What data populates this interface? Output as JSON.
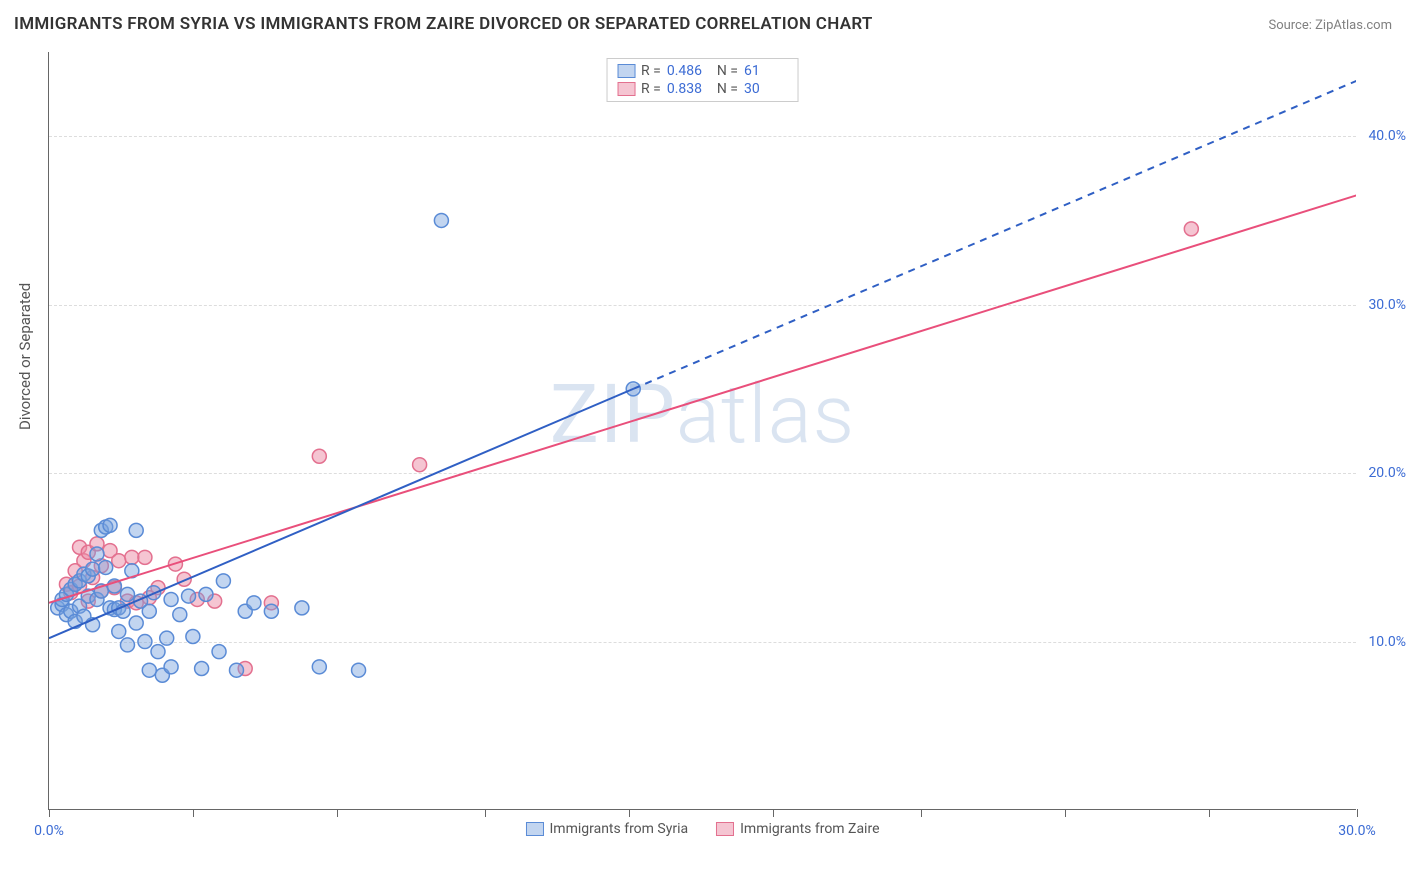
{
  "title": "IMMIGRANTS FROM SYRIA VS IMMIGRANTS FROM ZAIRE DIVORCED OR SEPARATED CORRELATION CHART",
  "source": "Source: ZipAtlas.com",
  "watermark": "ZIPatlas",
  "chart": {
    "type": "scatter",
    "xlabel": "",
    "ylabel": "Divorced or Separated",
    "xlim": [
      0,
      30
    ],
    "ylim": [
      0,
      45
    ],
    "xticks": [
      0,
      3.3,
      6.6,
      10,
      13.3,
      16.6,
      20,
      23.3,
      26.6,
      30
    ],
    "xtick_labels": {
      "0": "0.0%",
      "30": "30.0%"
    },
    "yticks": [
      10,
      20,
      30,
      40
    ],
    "ytick_labels": {
      "10": "10.0%",
      "20": "20.0%",
      "30": "30.0%",
      "40": "40.0%"
    },
    "background_color": "#ffffff",
    "grid_color": "#dddddd",
    "axis_color": "#666666",
    "tick_label_color": "#3b6bd4",
    "axis_label_color": "#555555",
    "axis_label_fontsize": 15,
    "tick_fontsize": 14,
    "marker_radius": 7,
    "marker_stroke_width": 1.5,
    "line_width": 2,
    "series": [
      {
        "name": "Immigrants from Syria",
        "fill": "rgba(120,162,222,0.45)",
        "stroke": "#5a8bd6",
        "line_color": "#2f5fc4",
        "R": "0.486",
        "N": "61",
        "trend": {
          "x1": 0,
          "y1": 10.2,
          "x2": 13.4,
          "y2": 25.0,
          "dash_x2": 30,
          "dash_y2": 43.3
        },
        "points": [
          [
            0.2,
            12.0
          ],
          [
            0.3,
            12.2
          ],
          [
            0.3,
            12.5
          ],
          [
            0.4,
            11.6
          ],
          [
            0.4,
            12.8
          ],
          [
            0.5,
            13.1
          ],
          [
            0.5,
            11.8
          ],
          [
            0.6,
            13.4
          ],
          [
            0.6,
            11.2
          ],
          [
            0.7,
            12.1
          ],
          [
            0.7,
            13.6
          ],
          [
            0.8,
            14.0
          ],
          [
            0.8,
            11.5
          ],
          [
            0.9,
            12.7
          ],
          [
            0.9,
            13.9
          ],
          [
            1.0,
            11.0
          ],
          [
            1.0,
            14.3
          ],
          [
            1.1,
            15.2
          ],
          [
            1.1,
            12.5
          ],
          [
            1.2,
            16.6
          ],
          [
            1.2,
            13.0
          ],
          [
            1.3,
            16.8
          ],
          [
            1.3,
            14.4
          ],
          [
            1.4,
            12.0
          ],
          [
            1.4,
            16.9
          ],
          [
            1.5,
            11.9
          ],
          [
            1.5,
            13.3
          ],
          [
            1.6,
            10.6
          ],
          [
            1.6,
            12.0
          ],
          [
            1.7,
            11.8
          ],
          [
            1.8,
            12.8
          ],
          [
            1.8,
            9.8
          ],
          [
            1.9,
            14.2
          ],
          [
            2.0,
            16.6
          ],
          [
            2.0,
            11.1
          ],
          [
            2.1,
            12.4
          ],
          [
            2.2,
            10.0
          ],
          [
            2.3,
            8.3
          ],
          [
            2.3,
            11.8
          ],
          [
            2.4,
            12.9
          ],
          [
            2.5,
            9.4
          ],
          [
            2.6,
            8.0
          ],
          [
            2.7,
            10.2
          ],
          [
            2.8,
            8.5
          ],
          [
            2.8,
            12.5
          ],
          [
            3.0,
            11.6
          ],
          [
            3.2,
            12.7
          ],
          [
            3.3,
            10.3
          ],
          [
            3.5,
            8.4
          ],
          [
            3.6,
            12.8
          ],
          [
            3.9,
            9.4
          ],
          [
            4.0,
            13.6
          ],
          [
            4.3,
            8.3
          ],
          [
            4.5,
            11.8
          ],
          [
            4.7,
            12.3
          ],
          [
            5.1,
            11.8
          ],
          [
            5.8,
            12.0
          ],
          [
            6.2,
            8.5
          ],
          [
            7.1,
            8.3
          ],
          [
            9.0,
            35.0
          ],
          [
            13.4,
            25.0
          ]
        ]
      },
      {
        "name": "Immigrants from Zaire",
        "fill": "rgba(235,140,165,0.5)",
        "stroke": "#e3708f",
        "line_color": "#e94f7b",
        "R": "0.838",
        "N": "30",
        "trend": {
          "x1": 0,
          "y1": 12.3,
          "x2": 30,
          "y2": 36.5
        },
        "points": [
          [
            0.4,
            13.4
          ],
          [
            0.5,
            12.9
          ],
          [
            0.6,
            14.2
          ],
          [
            0.7,
            15.6
          ],
          [
            0.7,
            13.3
          ],
          [
            0.8,
            14.8
          ],
          [
            0.9,
            12.4
          ],
          [
            0.9,
            15.3
          ],
          [
            1.0,
            13.8
          ],
          [
            1.1,
            15.8
          ],
          [
            1.2,
            14.5
          ],
          [
            1.2,
            13.0
          ],
          [
            1.4,
            15.4
          ],
          [
            1.5,
            13.2
          ],
          [
            1.6,
            14.8
          ],
          [
            1.8,
            12.4
          ],
          [
            1.9,
            15.0
          ],
          [
            2.0,
            12.3
          ],
          [
            2.2,
            15.0
          ],
          [
            2.3,
            12.6
          ],
          [
            2.5,
            13.2
          ],
          [
            2.9,
            14.6
          ],
          [
            3.1,
            13.7
          ],
          [
            3.4,
            12.5
          ],
          [
            3.8,
            12.4
          ],
          [
            4.5,
            8.4
          ],
          [
            5.1,
            12.3
          ],
          [
            6.2,
            21.0
          ],
          [
            8.5,
            20.5
          ],
          [
            26.2,
            34.5
          ]
        ]
      }
    ]
  },
  "legend_top": {
    "r_label": "R =",
    "n_label": "N ="
  }
}
